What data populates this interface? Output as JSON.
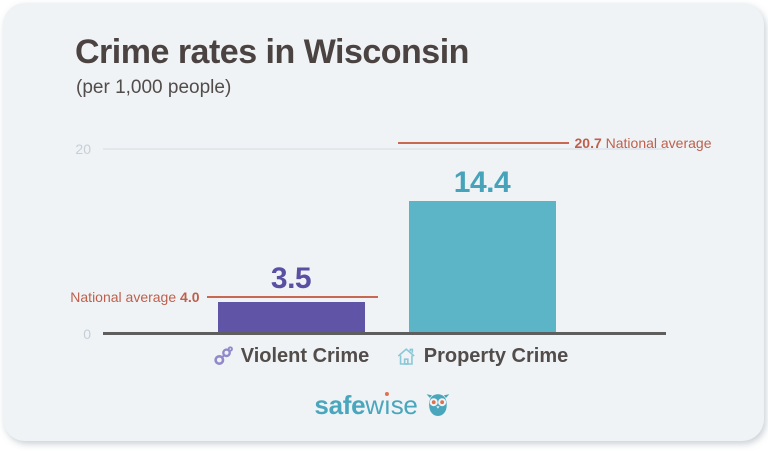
{
  "header": {
    "title": "Crime rates in Wisconsin",
    "subtitle": "(per 1,000 people)"
  },
  "chart_data": {
    "type": "bar",
    "title": "Crime rates in Wisconsin",
    "subtitle": "(per 1,000 people)",
    "unit": "per 1,000 people",
    "categories": [
      "Violent Crime",
      "Property Crime"
    ],
    "values": [
      3.5,
      14.4
    ],
    "value_labels": [
      "3.5",
      "14.4"
    ],
    "category_icons": [
      "handcuffs-icon",
      "house-icon"
    ],
    "bar_colors": [
      "#5f54a6",
      "#5cb5c6"
    ],
    "value_label_colors": [
      "#5a4fa2",
      "#46a3ba"
    ],
    "ylim": [
      0,
      40
    ],
    "yticks": [
      0,
      20,
      40
    ],
    "grid": true,
    "legend": false,
    "annotations": [
      {
        "value": 4.0,
        "value_label": "4.0",
        "text": "National average",
        "side": "left",
        "order": "text-first"
      },
      {
        "value": 20.7,
        "value_label": "20.7",
        "text": "National average",
        "side": "right",
        "order": "value-first"
      }
    ]
  },
  "footer": {
    "logo": {
      "part1": "safe",
      "part2": "w",
      "part3": "ı",
      "part4": "se"
    }
  },
  "colors": {
    "card_bg": "#eff3f6",
    "title": "#4a4341",
    "subtitle": "#524c4a",
    "tick_label": "#c6ced7",
    "gridline": "#e1e7ec",
    "baseline": "#5e5e5e",
    "x_label": "#524c4a",
    "annotation_text": "#bf5f4b",
    "annotation_line": "#c96850",
    "logo": "#49a6bc",
    "logo_dot": "#e0714f"
  }
}
